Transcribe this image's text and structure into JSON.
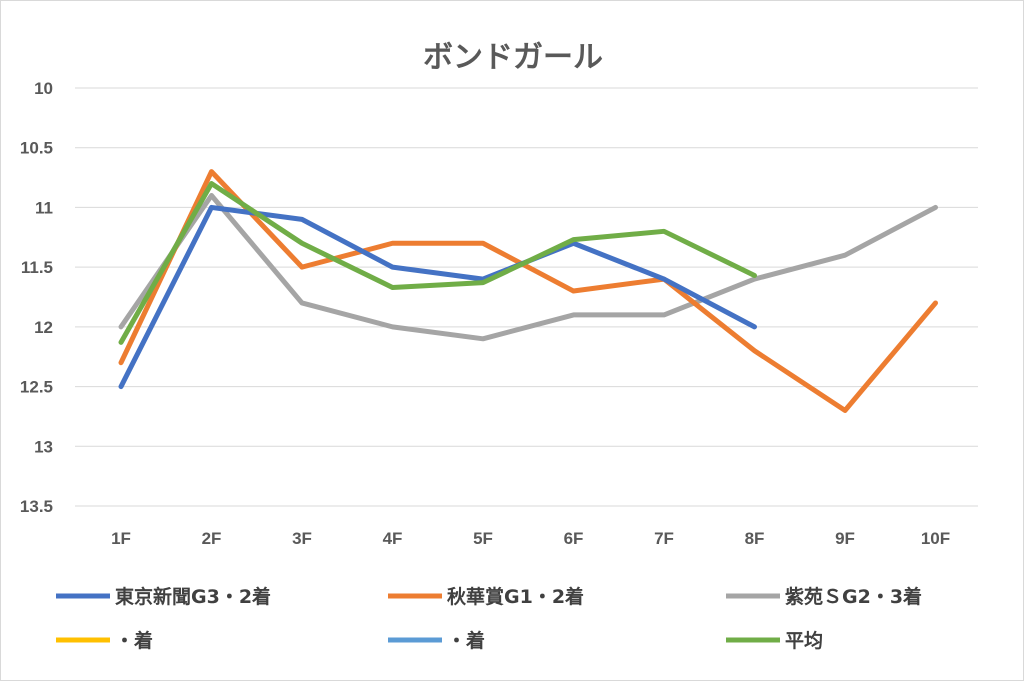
{
  "chart_data": {
    "type": "line",
    "title": "ボンドガール",
    "categories": [
      "1F",
      "2F",
      "3F",
      "4F",
      "5F",
      "6F",
      "7F",
      "8F",
      "9F",
      "10F"
    ],
    "y_ticks": [
      "10",
      "10.5",
      "11",
      "11.5",
      "12",
      "12.5",
      "13",
      "13.5"
    ],
    "ylim": [
      10,
      13.5
    ],
    "y_reversed": true,
    "grid": true,
    "legend_position": "bottom",
    "series": [
      {
        "name": "東京新聞G3・2着",
        "color": "#4472c4",
        "values": [
          12.5,
          11.0,
          11.1,
          11.5,
          11.6,
          11.3,
          11.6,
          12.0,
          null,
          null
        ]
      },
      {
        "name": "秋華賞G1・2着",
        "color": "#ed7d31",
        "values": [
          12.3,
          10.7,
          11.5,
          11.3,
          11.3,
          11.7,
          11.6,
          12.2,
          12.7,
          11.8
        ]
      },
      {
        "name": "紫苑ＳG2・3着",
        "color": "#a5a5a5",
        "values": [
          12.0,
          10.9,
          11.8,
          12.0,
          12.1,
          11.9,
          11.9,
          11.6,
          11.4,
          11.0
        ]
      },
      {
        "name": "・着",
        "color": "#ffc000",
        "values": [
          null,
          null,
          null,
          null,
          null,
          null,
          null,
          null,
          null,
          null
        ]
      },
      {
        "name": "・着",
        "color": "#5b9bd5",
        "values": [
          null,
          null,
          null,
          null,
          null,
          null,
          null,
          null,
          null,
          null
        ]
      },
      {
        "name": "平均",
        "color": "#70ad47",
        "values": [
          12.13,
          10.8,
          11.3,
          11.67,
          11.63,
          11.27,
          11.2,
          11.57,
          null,
          null
        ]
      }
    ]
  }
}
